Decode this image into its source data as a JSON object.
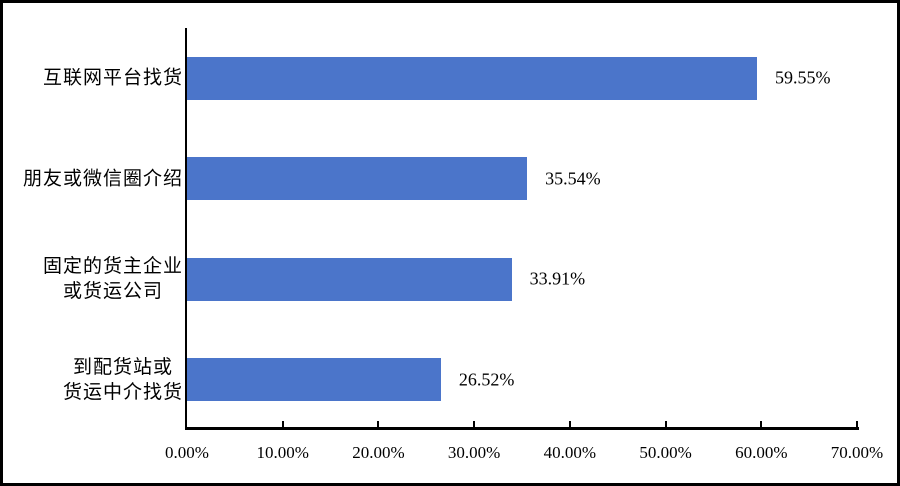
{
  "chart_data": {
    "type": "bar",
    "orientation": "horizontal",
    "title": "",
    "xlabel": "",
    "ylabel": "",
    "categories": [
      [
        "互联网平台找货"
      ],
      [
        "朋友或微信圈介绍"
      ],
      [
        "固定的货主企业",
        "或货运公司"
      ],
      [
        "到配货站或",
        "货运中介找货"
      ]
    ],
    "values": [
      59.55,
      35.54,
      33.91,
      26.52
    ],
    "data_labels": [
      "59.55%",
      "35.54%",
      "33.91%",
      "26.52%"
    ],
    "x_ticks": [
      {
        "value": 0,
        "label": "0.00%"
      },
      {
        "value": 10,
        "label": "10.00%"
      },
      {
        "value": 20,
        "label": "20.00%"
      },
      {
        "value": 30,
        "label": "30.00%"
      },
      {
        "value": 40,
        "label": "40.00%"
      },
      {
        "value": 50,
        "label": "50.00%"
      },
      {
        "value": 60,
        "label": "60.00%"
      },
      {
        "value": 70,
        "label": "70.00%"
      }
    ],
    "xlim": [
      0,
      70
    ],
    "grid": false,
    "legend": false,
    "bar_color": "#4B75CA",
    "axis_color": "#000000",
    "text_color": "#000000",
    "frame_border_color": "#000000"
  }
}
